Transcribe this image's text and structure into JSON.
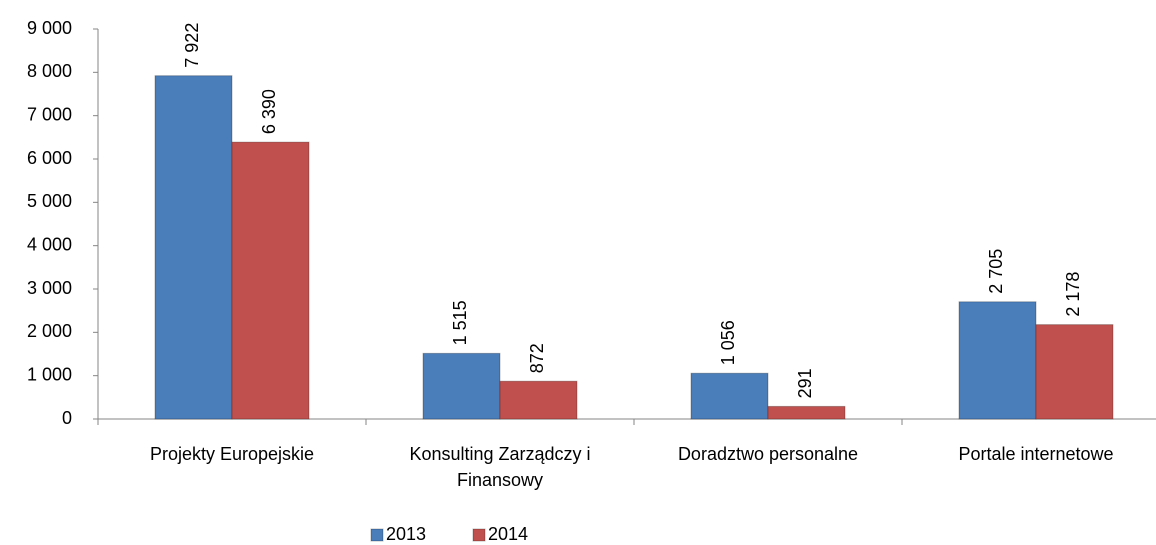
{
  "chart_data": {
    "type": "bar",
    "categories": [
      "Projekty Europejskie",
      "Konsulting Zarządczy i Finansowy",
      "Doradztwo personalne",
      "Portale internetowe"
    ],
    "series": [
      {
        "name": "2013",
        "color": "#4a7ebb",
        "values": [
          7922,
          1515,
          1056,
          2705
        ],
        "value_labels": [
          "7 922",
          "1 515",
          "1 056",
          "2 705"
        ]
      },
      {
        "name": "2014",
        "color": "#c0504d",
        "values": [
          6390,
          872,
          291,
          2178
        ],
        "value_labels": [
          "6 390",
          "872",
          "291",
          "2 178"
        ]
      }
    ],
    "ylim": [
      0,
      9000
    ],
    "yticks": [
      0,
      {
        "value": 1000,
        "label": "1 000"
      },
      {
        "value": 2000,
        "label": "2 000"
      },
      {
        "value": 3000,
        "label": "3 000"
      },
      {
        "value": 4000,
        "label": "4 000"
      },
      {
        "value": 5000,
        "label": "5 000"
      },
      {
        "value": 6000,
        "label": "6 000"
      },
      {
        "value": 7000,
        "label": "7 000"
      },
      {
        "value": 8000,
        "label": "8 000"
      },
      {
        "value": 9000,
        "label": "9 000"
      }
    ],
    "grid": false,
    "legend": "bottom"
  }
}
